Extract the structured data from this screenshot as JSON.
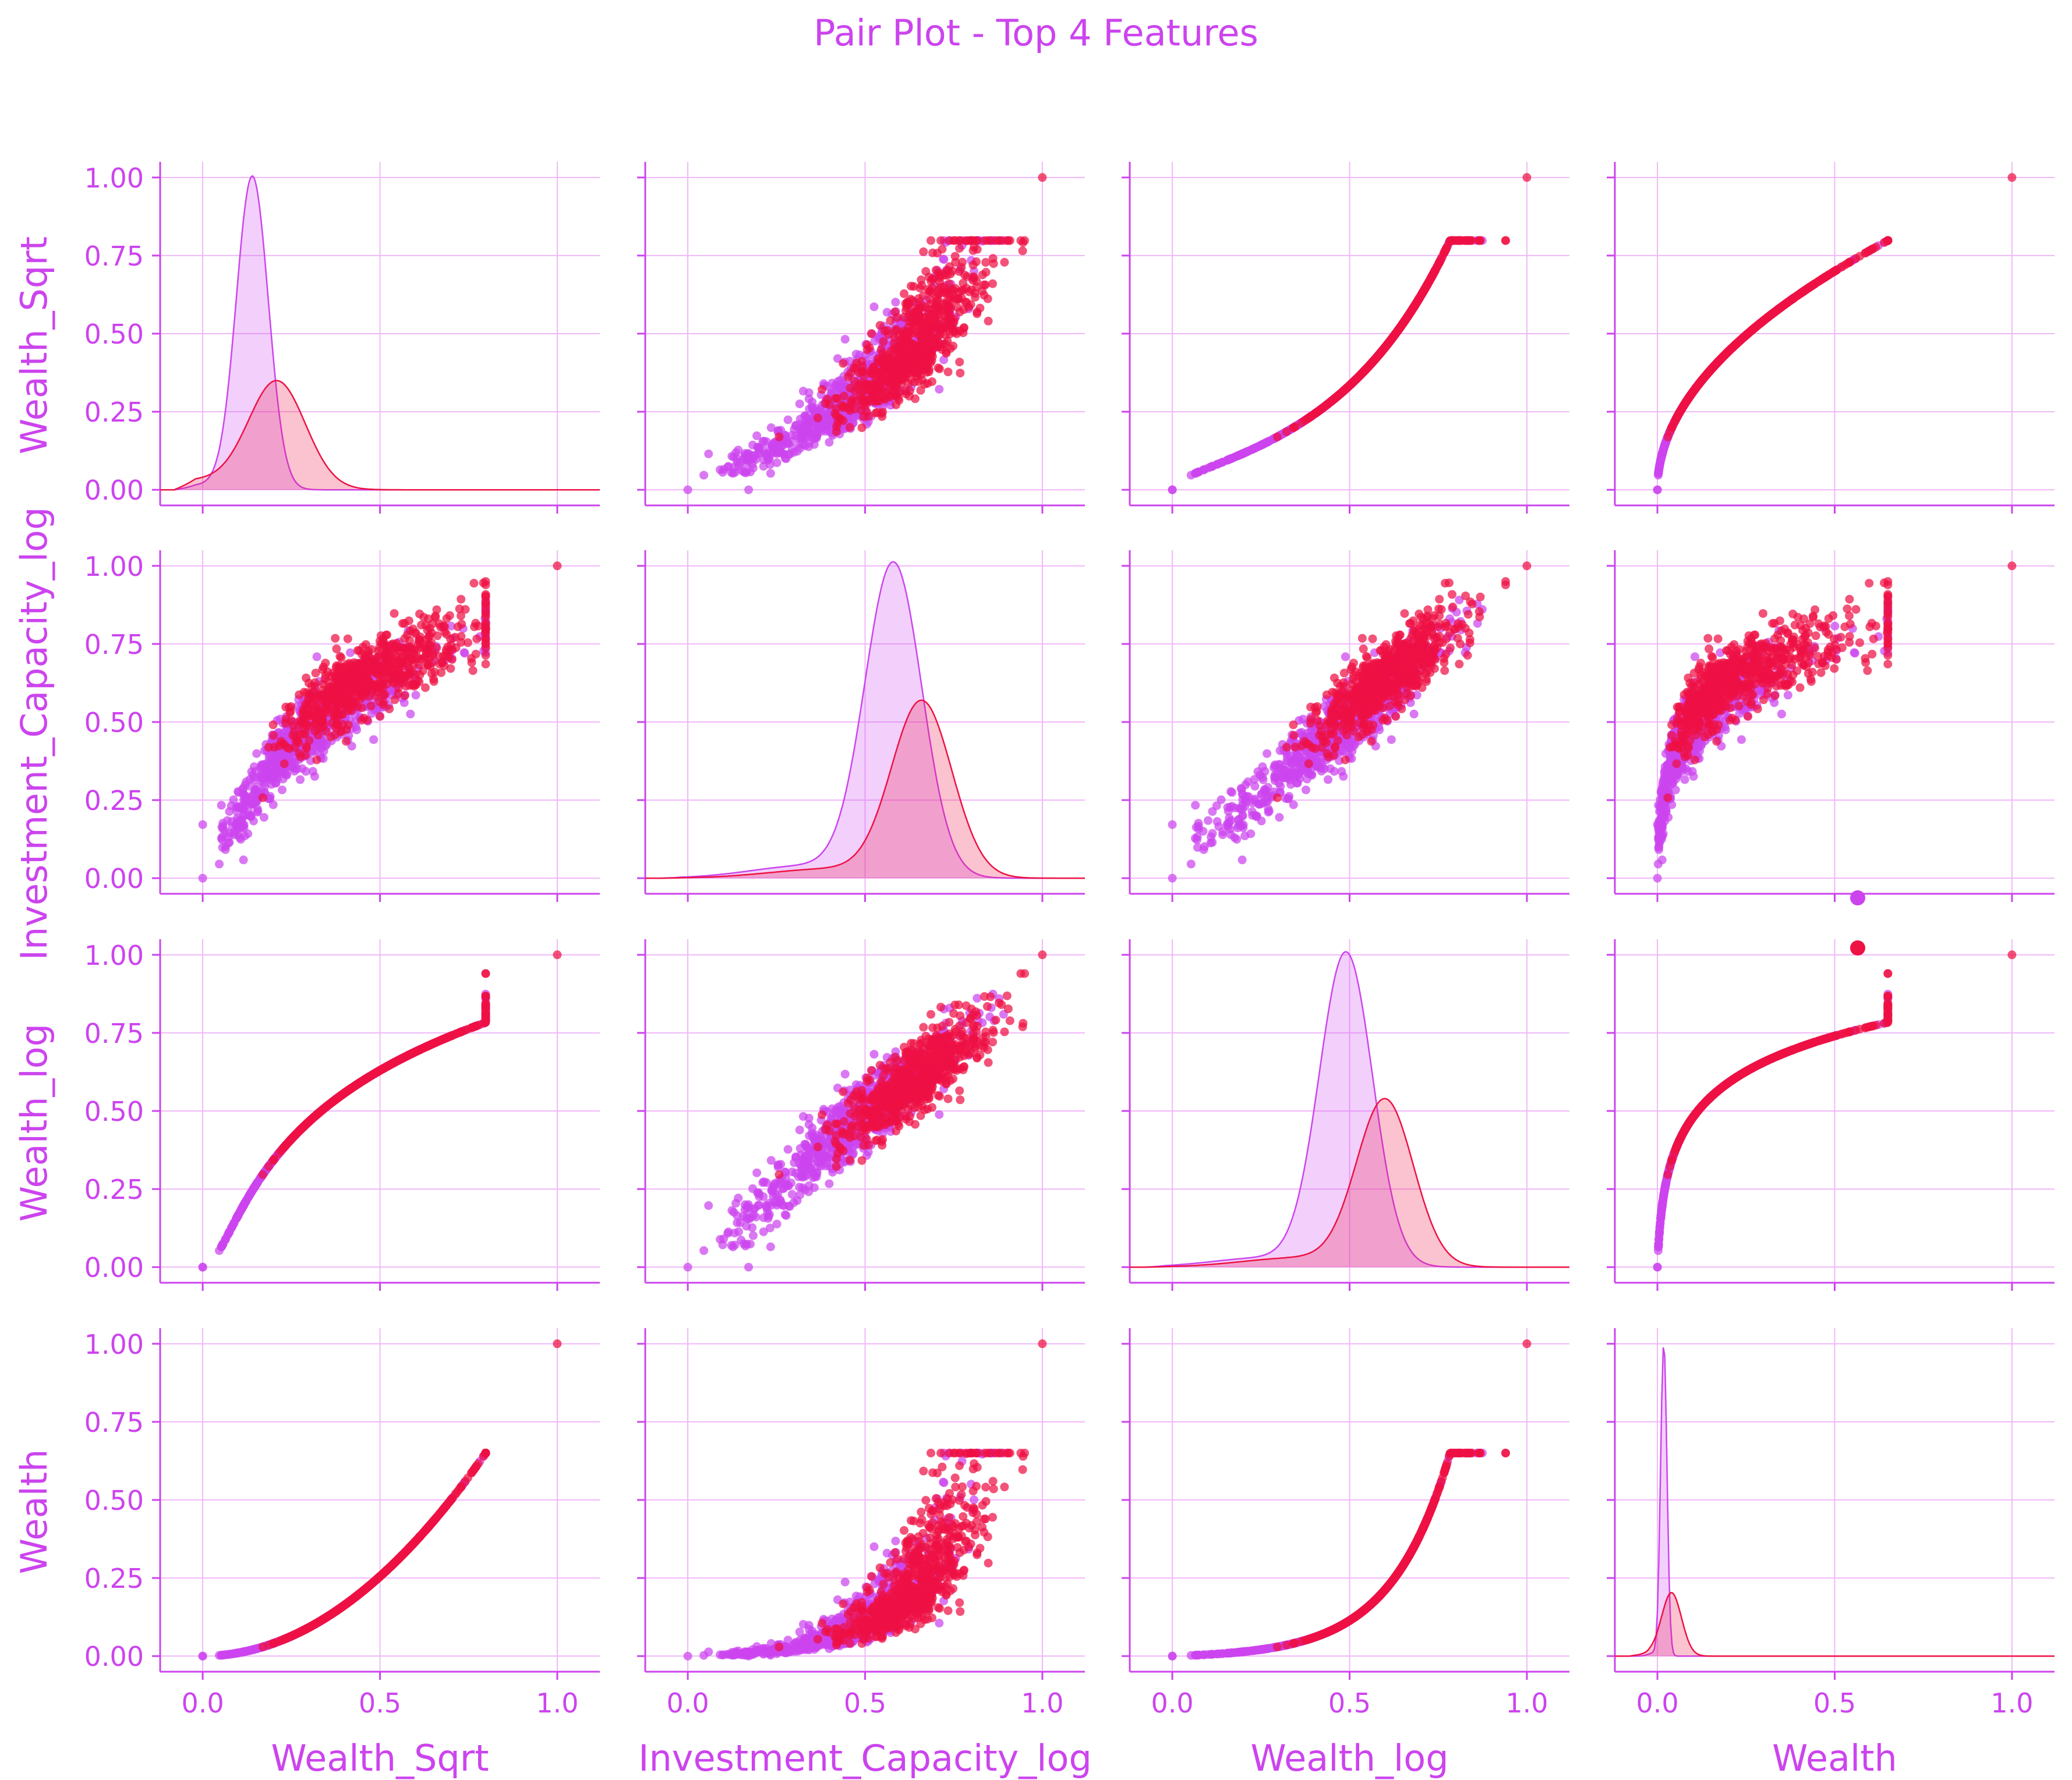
{
  "title": "Pair Plot - Top 4 Features",
  "colors": {
    "text": "#cc44ee",
    "axis": "#cc44ee",
    "grid": "#f0b8f8",
    "class_a": "#cc44ee",
    "class_b": "#ee1144"
  },
  "chart_data": {
    "type": "scatter",
    "subtype": "pair-plot",
    "title": "Pair Plot - Top 4 Features",
    "variables": [
      "Wealth_Sqrt",
      "Investment_Capacity_log",
      "Wealth_log",
      "Wealth"
    ],
    "xlim": [
      -0.12,
      1.12
    ],
    "ylim": [
      -0.05,
      1.05
    ],
    "x_ticks": [
      0.0,
      0.5,
      1.0
    ],
    "x_tick_labels": [
      "0.0",
      "0.5",
      "1.0"
    ],
    "y_ticks": [
      0.0,
      0.25,
      0.5,
      0.75,
      1.0
    ],
    "y_tick_labels": [
      "0.00",
      "0.25",
      "0.50",
      "0.75",
      "1.00"
    ],
    "grid": true,
    "diagonal": "kde",
    "off_diagonal": "scatter",
    "series": [
      {
        "color_key": "class_a",
        "approx_points": 700
      },
      {
        "color_key": "class_b",
        "approx_points": 700
      }
    ],
    "kde_peaks": {
      "Wealth_Sqrt": {
        "class_a": {
          "mode": 0.14,
          "peak": 1.0
        },
        "class_b": {
          "mode": 0.22,
          "peak": 0.34
        }
      },
      "Investment_Capacity_log": {
        "class_a": {
          "mode": 0.58,
          "peak": 1.0
        },
        "class_b": {
          "mode": 0.66,
          "peak": 0.56
        }
      },
      "Wealth_log": {
        "class_a": {
          "mode": 0.49,
          "peak": 1.0
        },
        "class_b": {
          "mode": 0.6,
          "peak": 0.53
        }
      },
      "Wealth": {
        "class_a": {
          "mode": 0.02,
          "peak": 1.0
        },
        "class_b": {
          "mode": 0.04,
          "peak": 0.2
        }
      }
    },
    "legend": {
      "placement": "right",
      "entries": [
        "",
        ""
      ]
    }
  }
}
